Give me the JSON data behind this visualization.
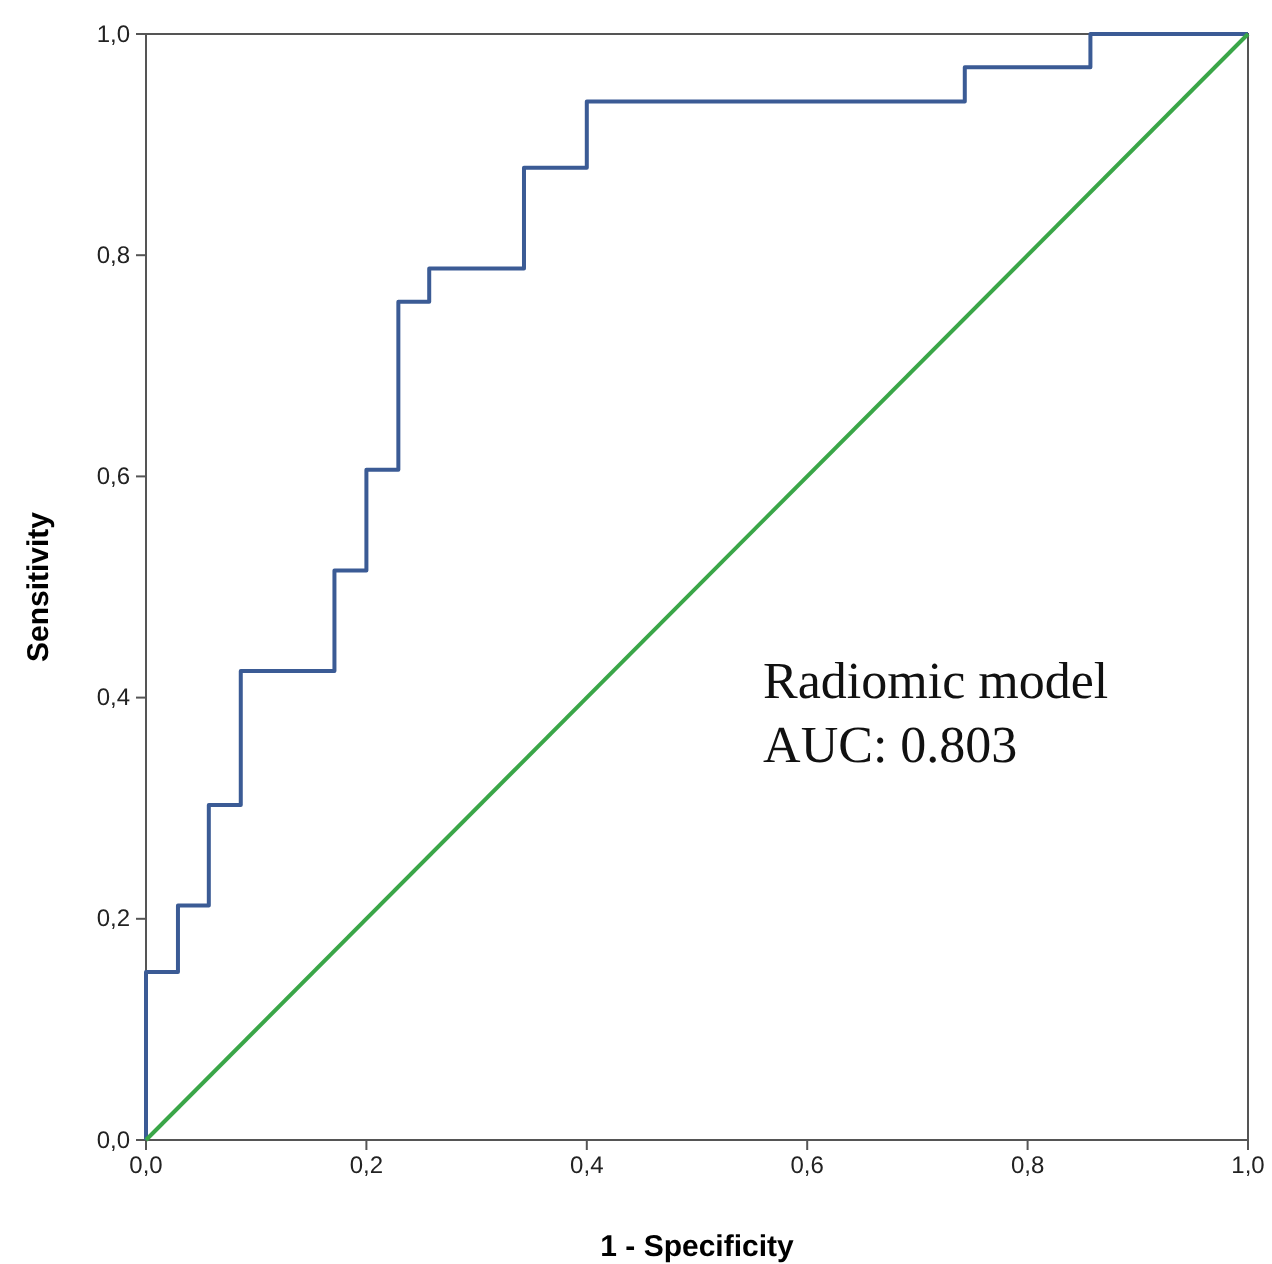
{
  "chart_data": {
    "type": "step",
    "xlabel": "1 - Specificity",
    "ylabel": "Sensitivity",
    "xlim": [
      0,
      1
    ],
    "ylim": [
      0,
      1
    ],
    "xticks": [
      {
        "value": 0,
        "label": "0,0"
      },
      {
        "value": 0.2,
        "label": "0,2"
      },
      {
        "value": 0.4,
        "label": "0,4"
      },
      {
        "value": 0.6,
        "label": "0,6"
      },
      {
        "value": 0.8,
        "label": "0,8"
      },
      {
        "value": 1,
        "label": "1,0"
      }
    ],
    "yticks": [
      {
        "value": 0,
        "label": "0,0"
      },
      {
        "value": 0.2,
        "label": "0,2"
      },
      {
        "value": 0.4,
        "label": "0,4"
      },
      {
        "value": 0.6,
        "label": "0,6"
      },
      {
        "value": 0.8,
        "label": "0,8"
      },
      {
        "value": 1,
        "label": "1,0"
      }
    ],
    "grid": false,
    "series": [
      {
        "color": "#3b5b95",
        "x": [
          0,
          0,
          0.029,
          0.057,
          0.086,
          0.171,
          0.2,
          0.229,
          0.257,
          0.343,
          0.4,
          0.743,
          0.857,
          1
        ],
        "values": [
          0,
          0.152,
          0.212,
          0.303,
          0.424,
          0.515,
          0.606,
          0.758,
          0.788,
          0.879,
          0.939,
          0.97,
          1,
          1
        ]
      },
      {
        "type": "line",
        "color": "#3aa648",
        "x": [
          0,
          1
        ],
        "values": [
          0,
          1
        ]
      }
    ],
    "annotations": [
      "Radiomic model",
      "AUC: 0.803"
    ]
  }
}
